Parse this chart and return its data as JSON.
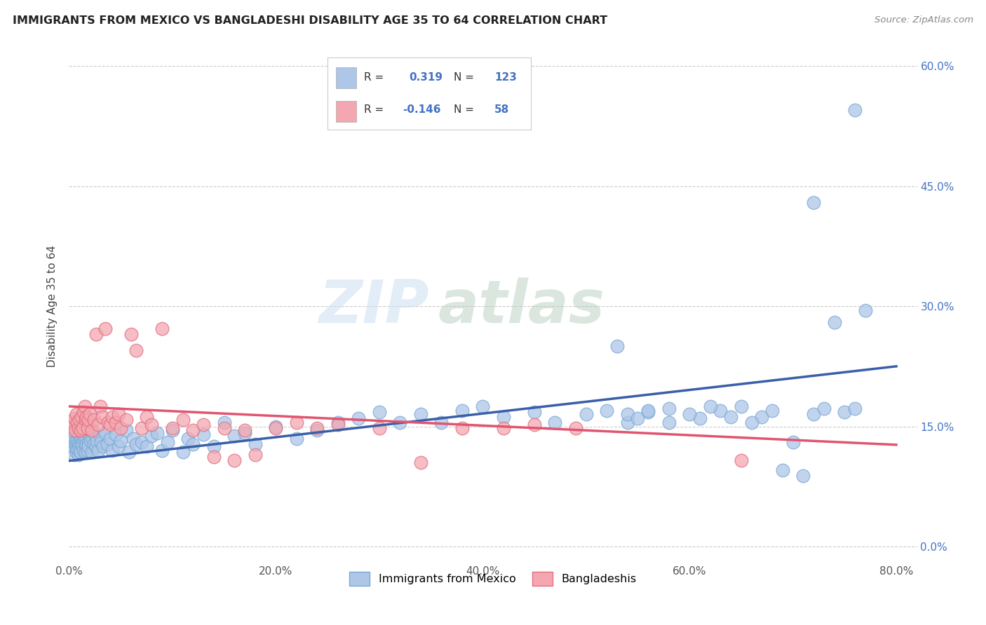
{
  "title": "IMMIGRANTS FROM MEXICO VS BANGLADESHI DISABILITY AGE 35 TO 64 CORRELATION CHART",
  "source": "Source: ZipAtlas.com",
  "xlabel_ticks": [
    "0.0%",
    "",
    "20.0%",
    "",
    "40.0%",
    "",
    "60.0%",
    "",
    "80.0%"
  ],
  "xlabel_tick_vals": [
    0.0,
    0.1,
    0.2,
    0.3,
    0.4,
    0.5,
    0.6,
    0.7,
    0.8
  ],
  "ylabel_ticks_right": [
    "60.0%",
    "45.0%",
    "30.0%",
    "15.0%",
    "0.0%"
  ],
  "ylabel_tick_vals": [
    0.0,
    0.15,
    0.3,
    0.45,
    0.6
  ],
  "ylabel": "Disability Age 35 to 64",
  "legend_labels": [
    "Immigrants from Mexico",
    "Bangladeshis"
  ],
  "r_mexico": 0.319,
  "n_mexico": 123,
  "r_bangla": -0.146,
  "n_bangla": 58,
  "color_mexico": "#aec6e8",
  "color_bangla": "#f4a7b0",
  "color_mexico_line": "#3a5fa8",
  "color_bangla_line": "#e05570",
  "watermark_zip": "ZIP",
  "watermark_atlas": "atlas",
  "xlim": [
    0.0,
    0.82
  ],
  "ylim": [
    -0.02,
    0.62
  ],
  "mexico_trend_start": 0.107,
  "mexico_trend_end": 0.225,
  "bangla_trend_start": 0.175,
  "bangla_trend_end": 0.127,
  "mexico_x": [
    0.003,
    0.004,
    0.005,
    0.005,
    0.006,
    0.006,
    0.007,
    0.007,
    0.007,
    0.008,
    0.008,
    0.008,
    0.009,
    0.009,
    0.009,
    0.01,
    0.01,
    0.01,
    0.01,
    0.011,
    0.011,
    0.011,
    0.012,
    0.012,
    0.012,
    0.013,
    0.013,
    0.014,
    0.014,
    0.015,
    0.015,
    0.016,
    0.016,
    0.017,
    0.017,
    0.018,
    0.018,
    0.019,
    0.019,
    0.02,
    0.021,
    0.021,
    0.022,
    0.023,
    0.024,
    0.025,
    0.026,
    0.027,
    0.028,
    0.03,
    0.031,
    0.033,
    0.035,
    0.037,
    0.04,
    0.042,
    0.045,
    0.048,
    0.05,
    0.055,
    0.058,
    0.062,
    0.065,
    0.07,
    0.075,
    0.08,
    0.085,
    0.09,
    0.095,
    0.1,
    0.11,
    0.115,
    0.12,
    0.13,
    0.14,
    0.15,
    0.16,
    0.17,
    0.18,
    0.2,
    0.22,
    0.24,
    0.26,
    0.28,
    0.3,
    0.32,
    0.34,
    0.36,
    0.38,
    0.4,
    0.42,
    0.45,
    0.47,
    0.5,
    0.52,
    0.54,
    0.56,
    0.58,
    0.61,
    0.63,
    0.65,
    0.67,
    0.69,
    0.71,
    0.72,
    0.73,
    0.74,
    0.75,
    0.76,
    0.77,
    0.53,
    0.54,
    0.55,
    0.56,
    0.58,
    0.6,
    0.62,
    0.64,
    0.66,
    0.68,
    0.7,
    0.72,
    0.76
  ],
  "mexico_y": [
    0.13,
    0.125,
    0.135,
    0.115,
    0.128,
    0.14,
    0.125,
    0.132,
    0.118,
    0.135,
    0.122,
    0.142,
    0.128,
    0.13,
    0.115,
    0.14,
    0.125,
    0.138,
    0.12,
    0.132,
    0.145,
    0.118,
    0.135,
    0.128,
    0.142,
    0.13,
    0.125,
    0.138,
    0.12,
    0.132,
    0.145,
    0.125,
    0.118,
    0.135,
    0.128,
    0.142,
    0.12,
    0.13,
    0.125,
    0.138,
    0.132,
    0.145,
    0.118,
    0.135,
    0.128,
    0.14,
    0.125,
    0.132,
    0.12,
    0.138,
    0.13,
    0.125,
    0.142,
    0.128,
    0.135,
    0.12,
    0.14,
    0.125,
    0.132,
    0.145,
    0.118,
    0.135,
    0.128,
    0.13,
    0.125,
    0.138,
    0.142,
    0.12,
    0.13,
    0.145,
    0.118,
    0.135,
    0.128,
    0.14,
    0.125,
    0.155,
    0.138,
    0.142,
    0.128,
    0.15,
    0.135,
    0.145,
    0.155,
    0.16,
    0.168,
    0.155,
    0.165,
    0.155,
    0.17,
    0.175,
    0.162,
    0.168,
    0.155,
    0.165,
    0.17,
    0.155,
    0.168,
    0.172,
    0.16,
    0.17,
    0.175,
    0.162,
    0.095,
    0.088,
    0.165,
    0.172,
    0.28,
    0.168,
    0.172,
    0.295,
    0.25,
    0.165,
    0.16,
    0.17,
    0.155,
    0.165,
    0.175,
    0.162,
    0.155,
    0.17,
    0.13,
    0.43,
    0.545
  ],
  "bangla_x": [
    0.003,
    0.004,
    0.005,
    0.006,
    0.007,
    0.008,
    0.009,
    0.01,
    0.011,
    0.012,
    0.013,
    0.014,
    0.015,
    0.016,
    0.017,
    0.018,
    0.019,
    0.02,
    0.022,
    0.024,
    0.026,
    0.028,
    0.03,
    0.032,
    0.035,
    0.038,
    0.04,
    0.042,
    0.045,
    0.048,
    0.05,
    0.055,
    0.06,
    0.065,
    0.07,
    0.075,
    0.08,
    0.09,
    0.1,
    0.11,
    0.12,
    0.13,
    0.14,
    0.15,
    0.16,
    0.17,
    0.18,
    0.2,
    0.22,
    0.24,
    0.26,
    0.3,
    0.34,
    0.38,
    0.42,
    0.45,
    0.49,
    0.65
  ],
  "bangla_y": [
    0.15,
    0.155,
    0.16,
    0.145,
    0.165,
    0.155,
    0.148,
    0.158,
    0.145,
    0.162,
    0.148,
    0.168,
    0.175,
    0.158,
    0.162,
    0.148,
    0.158,
    0.165,
    0.145,
    0.158,
    0.265,
    0.152,
    0.175,
    0.162,
    0.272,
    0.155,
    0.152,
    0.162,
    0.155,
    0.165,
    0.148,
    0.158,
    0.265,
    0.245,
    0.148,
    0.162,
    0.152,
    0.272,
    0.148,
    0.158,
    0.145,
    0.152,
    0.112,
    0.148,
    0.108,
    0.145,
    0.115,
    0.148,
    0.155,
    0.148,
    0.152,
    0.148,
    0.105,
    0.148,
    0.148,
    0.152,
    0.148,
    0.108
  ]
}
